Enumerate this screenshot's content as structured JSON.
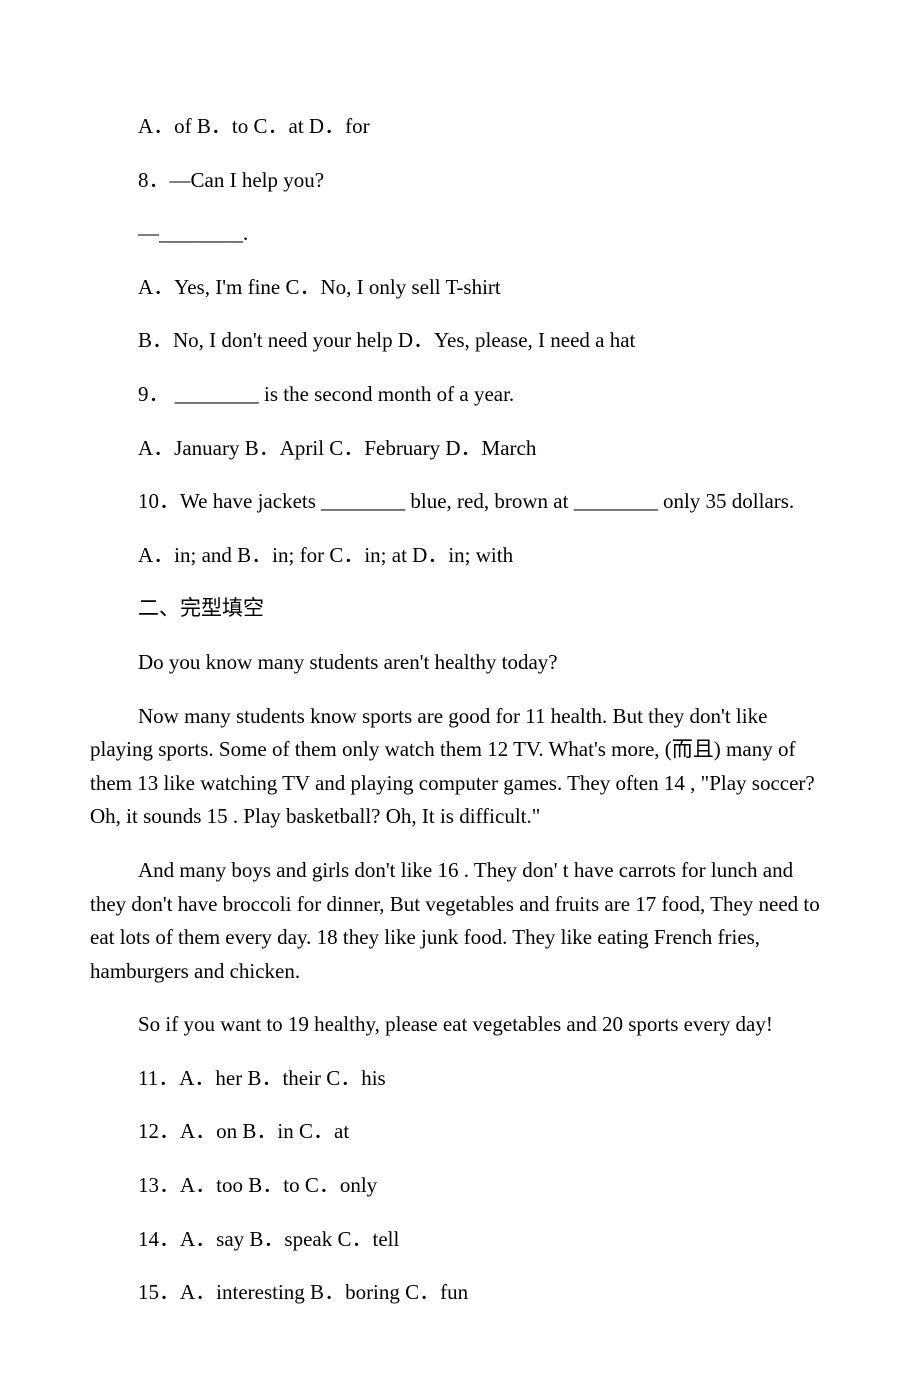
{
  "q7_options": "A．of B．to C．at D．for",
  "q8_stem": "8．—Can I help you?",
  "q8_dash": "—________.",
  "q8_row1": "A．Yes, I'm fine C．No, I only sell T-shirt",
  "q8_row2": "B．No, I don't need your help D．Yes, please, I need a hat",
  "q9_stem": "9． ________ is the second month of a year.",
  "q9_options": "A．January B．April C．February D．March",
  "q10_stem": "10．We have jackets ________ blue, red, brown at ________ only 35 dollars.",
  "q10_options": "A．in; and B．in; for C．in; at D．in; with",
  "section2_title": "二、完型填空",
  "passage1": " Do you know many students aren't healthy today?",
  "passage2": "Now many students know sports are good for  11  health. But they don't like playing sports. Some of them only watch them  12  TV. What's more, (而且) many of them  13  like watching TV and playing computer games. They often  14  , \"Play soccer? Oh, it sounds  15 . Play basketball? Oh, It is difficult.\"",
  "passage3": "And many boys and girls don't like  16 . They don' t have carrots for lunch and they don't have broccoli for dinner, But vegetables and fruits are  17  food, They need to eat lots of them every day.  18  they like junk food. They like eating French fries, hamburgers and chicken.",
  "passage4": "So if you want to  19  healthy, please eat vegetables and  20  sports every day!",
  "q11": "11．A．her B．their C．his",
  "q12": "12．A．on B．in C．at",
  "q13": "13．A．too B．to C．only",
  "q14": "14．A．say B．speak C．tell",
  "q15": "15．A．interesting B．boring C．fun"
}
